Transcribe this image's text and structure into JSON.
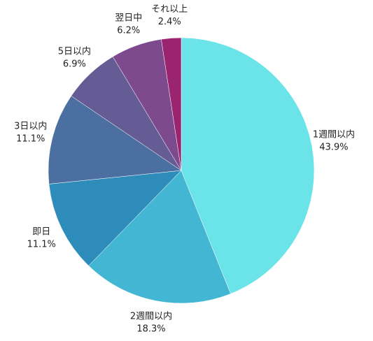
{
  "chart_data": {
    "type": "pie",
    "categories": [
      "1週間以内",
      "2週間以内",
      "即日",
      "3日以内",
      "5日以内",
      "翌日中",
      "それ以上"
    ],
    "values": [
      43.9,
      18.3,
      11.1,
      11.1,
      6.9,
      6.2,
      2.4
    ],
    "value_labels": [
      "43.9%",
      "18.3%",
      "11.1%",
      "11.1%",
      "6.9%",
      "6.2%",
      "2.4%"
    ],
    "colors": [
      "#6ae4e8",
      "#42b6d3",
      "#2e8cbb",
      "#4a6fa0",
      "#655c95",
      "#7e4a8e",
      "#9a2470"
    ]
  }
}
